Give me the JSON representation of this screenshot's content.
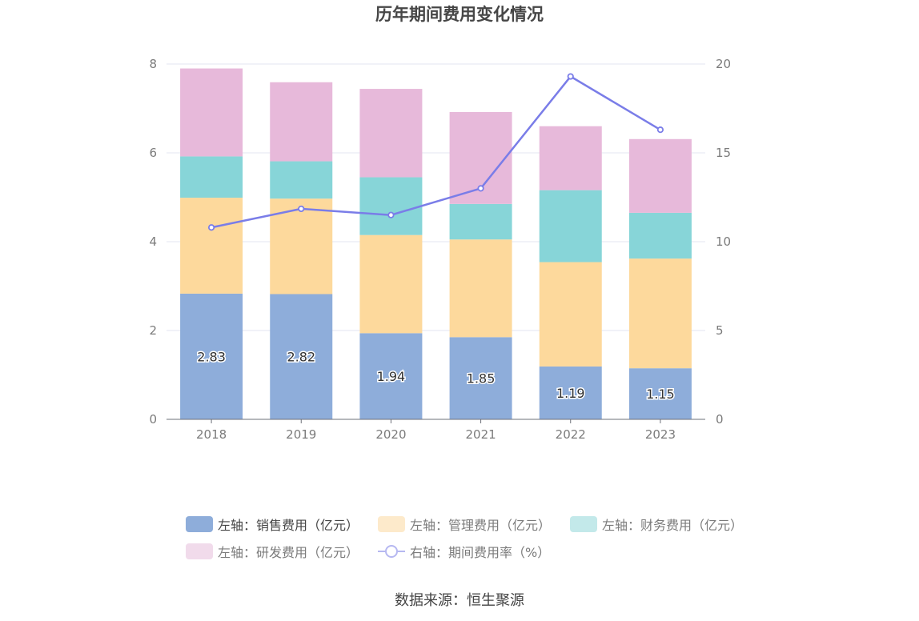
{
  "chart_data": {
    "type": "bar",
    "stacked": true,
    "title": "历年期间费用变化情况",
    "categories": [
      "2018",
      "2019",
      "2020",
      "2021",
      "2022",
      "2023"
    ],
    "y_left": {
      "ylim": [
        0,
        8
      ],
      "ticks": [
        "0",
        "2",
        "4",
        "6",
        "8"
      ]
    },
    "y_right": {
      "ylim": [
        0,
        20
      ],
      "ticks": [
        "0",
        "5",
        "10",
        "15",
        "20"
      ]
    },
    "grid": true,
    "legend_position": "bottom",
    "series": [
      {
        "name": "左轴：销售费用（亿元）",
        "axis": "left",
        "type": "bar",
        "color": "#8eadda",
        "values": [
          2.83,
          2.82,
          1.94,
          1.85,
          1.19,
          1.15
        ],
        "labels": [
          "2.83",
          "2.82",
          "1.94",
          "1.85",
          "1.19",
          "1.15"
        ]
      },
      {
        "name": "左轴：管理费用（亿元）",
        "axis": "left",
        "type": "bar",
        "color": "#fdd99c",
        "values": [
          2.16,
          2.15,
          2.21,
          2.2,
          2.35,
          2.47
        ]
      },
      {
        "name": "左轴：财务费用（亿元）",
        "axis": "left",
        "type": "bar",
        "color": "#87d5d8",
        "values": [
          0.93,
          0.84,
          1.3,
          0.8,
          1.62,
          1.03
        ]
      },
      {
        "name": "左轴：研发费用（亿元）",
        "axis": "left",
        "type": "bar",
        "color": "#e7b9da",
        "values": [
          1.98,
          1.78,
          1.99,
          2.07,
          1.44,
          1.66
        ]
      },
      {
        "name": "右轴：期间费用率（%）",
        "axis": "right",
        "type": "line",
        "color": "#7a7de8",
        "values": [
          10.8,
          11.85,
          11.5,
          13.0,
          19.3,
          16.3
        ]
      }
    ]
  },
  "source": "数据来源：恒生聚源"
}
